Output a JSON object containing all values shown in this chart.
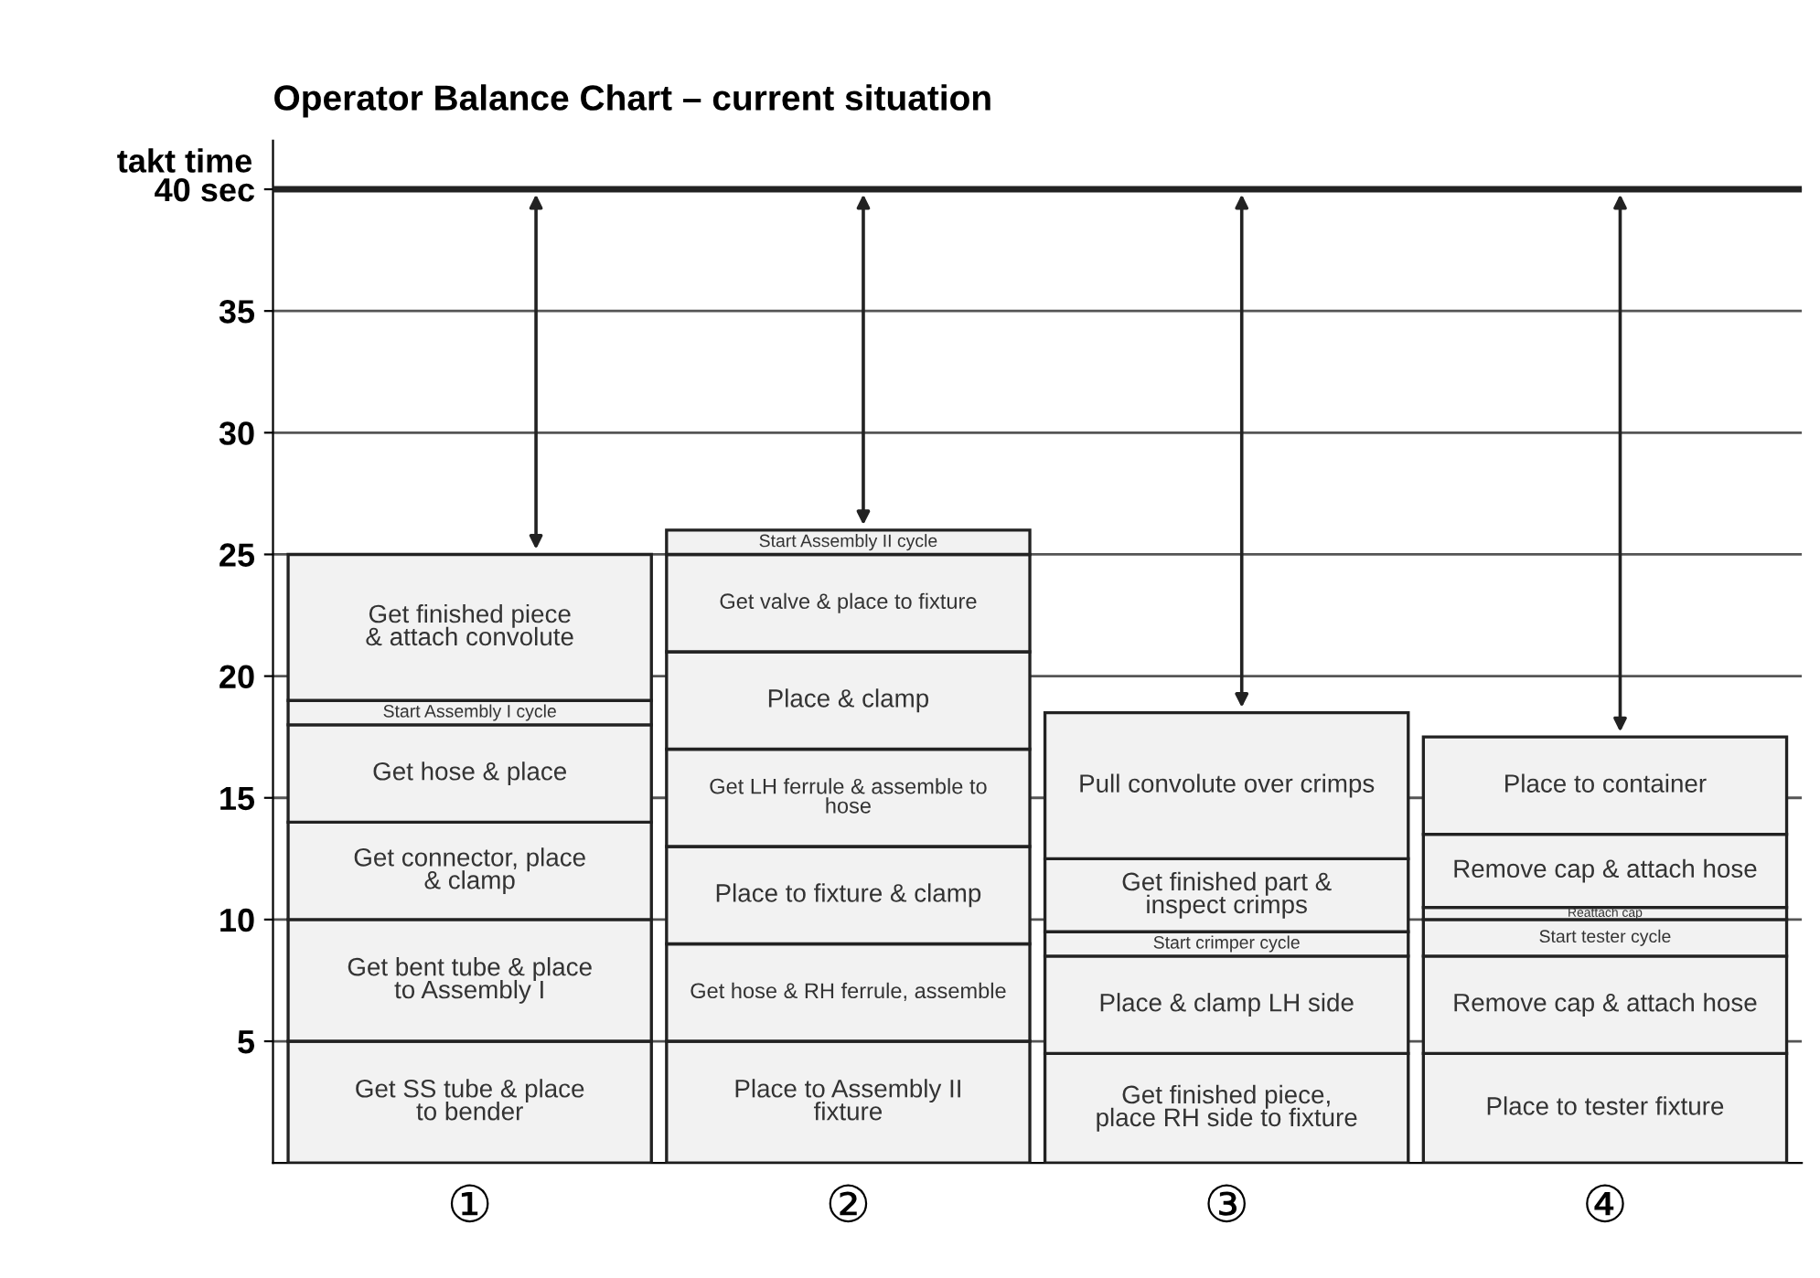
{
  "chart_data": {
    "type": "bar",
    "title": "Operator Balance Chart – current situation",
    "stacked": true,
    "categories": [
      "①",
      "②",
      "③",
      "④"
    ],
    "series": [
      {
        "color": "#f2f2f2",
        "values": [
          5,
          5,
          4.5,
          4.5
        ],
        "value_labels": [
          "Get SS tube & place\nto bender",
          "Place to Assembly II\nfixture",
          "Get finished piece,\nplace RH side to fixture",
          "Place to tester fixture"
        ]
      },
      {
        "color": "#f2f2f2",
        "values": [
          5,
          4,
          4,
          4
        ],
        "value_labels": [
          "Get bent tube & place\nto Assembly I",
          "Get hose & RH ferrule, assemble",
          "Place & clamp LH side",
          "Remove cap & attach hose"
        ]
      },
      {
        "color": "#f2f2f2",
        "values": [
          4,
          4,
          1,
          1.5
        ],
        "value_labels": [
          "Get connector, place\n& clamp",
          "Place to fixture & clamp",
          "Start crimper cycle",
          "Start tester cycle"
        ]
      },
      {
        "color": "#f2f2f2",
        "values": [
          4,
          4,
          3,
          0.5
        ],
        "value_labels": [
          "Get hose & place",
          "Get LH ferrule & assemble to\nhose",
          "Get finished part &\ninspect crimps",
          "Reattach cap"
        ]
      },
      {
        "color": "#f2f2f2",
        "values": [
          1,
          4,
          6,
          3
        ],
        "value_labels": [
          "Start Assembly I cycle",
          "Place & clamp",
          "Pull convolute over crimps",
          "Remove cap & attach hose"
        ]
      },
      {
        "color": "#f2f2f2",
        "values": [
          6,
          4,
          null,
          4
        ],
        "value_labels": [
          "Get finished piece\n& attach convolute",
          "Get valve & place to fixture",
          null,
          "Place to container"
        ]
      },
      {
        "color": "#f2f2f2",
        "values": [
          null,
          1,
          null,
          null
        ],
        "value_labels": [
          null,
          "Start Assembly II cycle",
          null,
          null
        ]
      }
    ],
    "ylim": [
      0,
      42
    ],
    "yticks": [
      5,
      10,
      15,
      20,
      25,
      30,
      35,
      {
        "value": 40,
        "label": "40 sec"
      }
    ],
    "ref_lines": [
      {
        "axis": "y",
        "value": 40,
        "label": "takt time",
        "color": "#222222"
      }
    ],
    "grid": "y"
  }
}
